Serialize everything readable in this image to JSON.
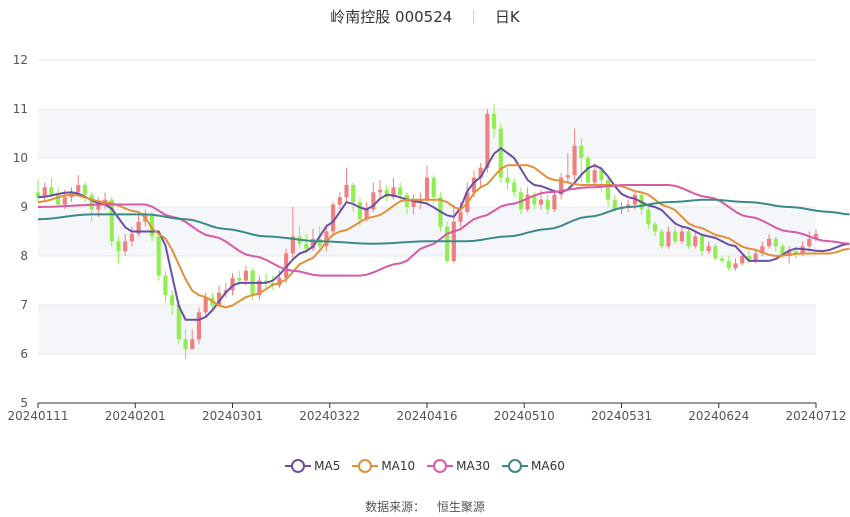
{
  "header": {
    "stock_title": "岭南控股 000524",
    "period": "日K"
  },
  "chart_data": {
    "type": "candlestick",
    "ylim": [
      5,
      12
    ],
    "y_ticks": [
      "5",
      "6",
      "7",
      "8",
      "9",
      "10",
      "11",
      "12"
    ],
    "x_ticks": [
      "20240111",
      "20240201",
      "20240301",
      "20240322",
      "20240416",
      "20240510",
      "20240531",
      "20240624",
      "20240712"
    ],
    "colors": {
      "up": "#f08080",
      "down": "#90ee50",
      "grid": "#e8e8e8",
      "band": "#f5f6fa",
      "axis": "#333333"
    },
    "ohlc": [
      [
        9.3,
        9.2,
        9.55,
        9.1
      ],
      [
        9.2,
        9.4,
        9.5,
        9.1
      ],
      [
        9.4,
        9.25,
        9.6,
        9.2
      ],
      [
        9.25,
        9.05,
        9.4,
        9.0
      ],
      [
        9.05,
        9.2,
        9.35,
        8.95
      ],
      [
        9.2,
        9.3,
        9.4,
        9.1
      ],
      [
        9.3,
        9.45,
        9.65,
        9.25
      ],
      [
        9.45,
        9.25,
        9.5,
        9.1
      ],
      [
        9.25,
        8.95,
        9.3,
        8.7
      ],
      [
        8.95,
        9.05,
        9.2,
        8.8
      ],
      [
        9.05,
        9.15,
        9.3,
        8.95
      ],
      [
        9.15,
        8.3,
        9.2,
        8.2
      ],
      [
        8.3,
        8.1,
        8.4,
        7.85
      ],
      [
        8.1,
        8.3,
        8.45,
        8.0
      ],
      [
        8.3,
        8.45,
        8.6,
        8.2
      ],
      [
        8.45,
        8.7,
        8.85,
        8.4
      ],
      [
        8.7,
        8.85,
        8.95,
        8.6
      ],
      [
        8.85,
        8.4,
        8.9,
        8.3
      ],
      [
        8.4,
        7.6,
        8.45,
        7.5
      ],
      [
        7.6,
        7.2,
        7.7,
        7.05
      ],
      [
        7.2,
        7.0,
        7.3,
        6.8
      ],
      [
        7.0,
        6.3,
        7.1,
        6.2
      ],
      [
        6.3,
        6.1,
        6.5,
        5.9
      ],
      [
        6.1,
        6.3,
        6.5,
        6.1
      ],
      [
        6.3,
        6.85,
        6.95,
        6.2
      ],
      [
        6.85,
        7.15,
        7.25,
        6.75
      ],
      [
        7.15,
        7.0,
        7.25,
        6.9
      ],
      [
        7.0,
        7.25,
        7.4,
        6.95
      ],
      [
        7.25,
        7.3,
        7.45,
        7.15
      ],
      [
        7.3,
        7.55,
        7.65,
        7.2
      ],
      [
        7.55,
        7.5,
        7.7,
        7.4
      ],
      [
        7.5,
        7.7,
        7.8,
        7.4
      ],
      [
        7.7,
        7.2,
        7.75,
        7.1
      ],
      [
        7.2,
        7.5,
        7.6,
        7.1
      ],
      [
        7.5,
        7.45,
        7.65,
        7.35
      ],
      [
        7.45,
        7.4,
        7.6,
        7.3
      ],
      [
        7.4,
        7.55,
        7.7,
        7.35
      ],
      [
        7.55,
        8.05,
        8.15,
        7.45
      ],
      [
        8.05,
        8.4,
        9.0,
        7.95
      ],
      [
        8.4,
        8.25,
        8.6,
        8.15
      ],
      [
        8.25,
        8.15,
        8.45,
        8.05
      ],
      [
        8.15,
        8.35,
        8.55,
        8.1
      ],
      [
        8.35,
        8.2,
        8.6,
        8.1
      ],
      [
        8.2,
        8.5,
        8.65,
        8.1
      ],
      [
        8.5,
        9.05,
        9.1,
        8.4
      ],
      [
        9.05,
        9.2,
        9.3,
        8.95
      ],
      [
        9.2,
        9.45,
        9.8,
        9.1
      ],
      [
        9.45,
        9.1,
        9.5,
        8.9
      ],
      [
        9.1,
        8.75,
        9.2,
        8.6
      ],
      [
        8.75,
        8.95,
        9.1,
        8.7
      ],
      [
        8.95,
        9.3,
        9.5,
        8.9
      ],
      [
        9.3,
        9.35,
        9.55,
        9.2
      ],
      [
        9.35,
        9.2,
        9.45,
        9.1
      ],
      [
        9.2,
        9.4,
        9.6,
        9.15
      ],
      [
        9.4,
        9.25,
        9.5,
        9.1
      ],
      [
        9.25,
        9.0,
        9.3,
        8.85
      ],
      [
        9.0,
        9.1,
        9.25,
        8.85
      ],
      [
        9.1,
        9.15,
        9.3,
        8.95
      ],
      [
        9.15,
        9.6,
        9.85,
        9.1
      ],
      [
        9.6,
        9.2,
        9.65,
        9.05
      ],
      [
        9.2,
        8.6,
        9.3,
        8.5
      ],
      [
        8.6,
        7.9,
        8.7,
        7.85
      ],
      [
        7.9,
        8.7,
        9.05,
        7.85
      ],
      [
        8.7,
        8.9,
        9.1,
        8.6
      ],
      [
        8.9,
        9.3,
        9.5,
        8.85
      ],
      [
        9.3,
        9.6,
        9.75,
        9.2
      ],
      [
        9.6,
        9.8,
        9.9,
        9.4
      ],
      [
        9.8,
        10.9,
        11.0,
        9.7
      ],
      [
        10.9,
        10.6,
        11.1,
        10.4
      ],
      [
        10.6,
        9.6,
        10.7,
        9.5
      ],
      [
        9.6,
        9.5,
        9.8,
        9.35
      ],
      [
        9.5,
        9.3,
        9.6,
        9.2
      ],
      [
        9.3,
        8.95,
        9.4,
        8.85
      ],
      [
        8.95,
        9.25,
        9.4,
        8.9
      ],
      [
        9.25,
        9.05,
        9.3,
        8.95
      ],
      [
        9.05,
        9.15,
        9.35,
        8.95
      ],
      [
        9.15,
        8.95,
        9.25,
        8.85
      ],
      [
        8.95,
        9.25,
        9.35,
        8.9
      ],
      [
        9.25,
        9.6,
        9.7,
        9.15
      ],
      [
        9.6,
        9.65,
        10.1,
        9.5
      ],
      [
        9.65,
        10.25,
        10.6,
        9.55
      ],
      [
        10.25,
        10.0,
        10.4,
        9.5
      ],
      [
        10.0,
        9.5,
        10.05,
        9.4
      ],
      [
        9.5,
        9.75,
        9.9,
        9.4
      ],
      [
        9.75,
        9.55,
        9.85,
        9.3
      ],
      [
        9.55,
        9.15,
        9.6,
        9.0
      ],
      [
        9.15,
        8.95,
        9.25,
        8.9
      ],
      [
        8.95,
        9.0,
        9.1,
        8.85
      ],
      [
        9.0,
        9.05,
        9.15,
        8.9
      ],
      [
        9.05,
        9.25,
        9.35,
        8.95
      ],
      [
        9.25,
        8.95,
        9.3,
        8.85
      ],
      [
        8.95,
        8.65,
        9.0,
        8.55
      ],
      [
        8.65,
        8.5,
        8.7,
        8.4
      ],
      [
        8.5,
        8.2,
        8.55,
        8.15
      ],
      [
        8.2,
        8.5,
        8.6,
        8.15
      ],
      [
        8.5,
        8.3,
        8.6,
        8.25
      ],
      [
        8.3,
        8.5,
        8.6,
        8.25
      ],
      [
        8.5,
        8.2,
        8.55,
        8.15
      ],
      [
        8.2,
        8.4,
        8.5,
        8.15
      ],
      [
        8.4,
        8.1,
        8.45,
        8.0
      ],
      [
        8.1,
        8.2,
        8.3,
        8.05
      ],
      [
        8.2,
        7.95,
        8.25,
        7.9
      ],
      [
        7.95,
        7.9,
        8.0,
        7.85
      ],
      [
        7.9,
        7.75,
        8.0,
        7.7
      ],
      [
        7.75,
        7.85,
        7.95,
        7.7
      ],
      [
        7.85,
        8.0,
        8.05,
        7.8
      ],
      [
        8.0,
        7.9,
        8.1,
        7.85
      ],
      [
        7.9,
        8.05,
        8.15,
        7.85
      ],
      [
        8.05,
        8.2,
        8.3,
        8.0
      ],
      [
        8.2,
        8.35,
        8.45,
        8.15
      ],
      [
        8.35,
        8.2,
        8.4,
        8.1
      ],
      [
        8.2,
        8.0,
        8.25,
        7.95
      ],
      [
        8.0,
        8.1,
        8.2,
        7.85
      ],
      [
        8.1,
        8.05,
        8.2,
        7.95
      ],
      [
        8.05,
        8.2,
        8.3,
        8.0
      ],
      [
        8.2,
        8.35,
        8.5,
        8.1
      ],
      [
        8.35,
        8.45,
        8.55,
        8.3
      ]
    ],
    "series": [
      {
        "name": "MA5",
        "color": "#6a4fa6",
        "anchors": [
          [
            0,
            9.2
          ],
          [
            5,
            9.3
          ],
          [
            10,
            9.05
          ],
          [
            14,
            8.5
          ],
          [
            18,
            8.5
          ],
          [
            22,
            6.7
          ],
          [
            24,
            6.7
          ],
          [
            30,
            7.45
          ],
          [
            34,
            7.45
          ],
          [
            40,
            8.1
          ],
          [
            44,
            8.7
          ],
          [
            46,
            9.1
          ],
          [
            49,
            8.95
          ],
          [
            52,
            9.25
          ],
          [
            57,
            9.1
          ],
          [
            62,
            8.8
          ],
          [
            65,
            9.5
          ],
          [
            69,
            10.2
          ],
          [
            70,
            10.1
          ],
          [
            74,
            9.45
          ],
          [
            78,
            9.3
          ],
          [
            83,
            9.85
          ],
          [
            88,
            9.2
          ],
          [
            92,
            9.0
          ],
          [
            96,
            8.6
          ],
          [
            100,
            8.4
          ],
          [
            104,
            8.2
          ],
          [
            106,
            7.9
          ],
          [
            109,
            7.9
          ],
          [
            113,
            8.15
          ],
          [
            117,
            8.1
          ],
          [
            121,
            8.25
          ]
        ]
      },
      {
        "name": "MA10",
        "color": "#e0913a",
        "anchors": [
          [
            0,
            9.1
          ],
          [
            5,
            9.25
          ],
          [
            10,
            9.1
          ],
          [
            15,
            8.9
          ],
          [
            18,
            8.45
          ],
          [
            24,
            7.2
          ],
          [
            28,
            6.95
          ],
          [
            32,
            7.2
          ],
          [
            36,
            7.45
          ],
          [
            40,
            7.9
          ],
          [
            45,
            8.5
          ],
          [
            50,
            8.8
          ],
          [
            55,
            9.15
          ],
          [
            60,
            9.15
          ],
          [
            63,
            8.95
          ],
          [
            66,
            9.4
          ],
          [
            70,
            9.85
          ],
          [
            73,
            9.85
          ],
          [
            77,
            9.55
          ],
          [
            81,
            9.45
          ],
          [
            86,
            9.45
          ],
          [
            90,
            9.3
          ],
          [
            94,
            9.0
          ],
          [
            98,
            8.6
          ],
          [
            102,
            8.4
          ],
          [
            106,
            8.15
          ],
          [
            110,
            8.0
          ],
          [
            114,
            8.05
          ],
          [
            118,
            8.05
          ],
          [
            121,
            8.15
          ]
        ]
      },
      {
        "name": "MA30",
        "color": "#d65aa6",
        "anchors": [
          [
            0,
            9.0
          ],
          [
            10,
            9.05
          ],
          [
            16,
            9.05
          ],
          [
            20,
            8.8
          ],
          [
            26,
            8.4
          ],
          [
            32,
            8.0
          ],
          [
            38,
            7.7
          ],
          [
            42,
            7.6
          ],
          [
            48,
            7.6
          ],
          [
            54,
            7.85
          ],
          [
            58,
            8.2
          ],
          [
            62,
            8.5
          ],
          [
            66,
            8.8
          ],
          [
            70,
            9.05
          ],
          [
            76,
            9.3
          ],
          [
            82,
            9.4
          ],
          [
            88,
            9.45
          ],
          [
            94,
            9.45
          ],
          [
            100,
            9.2
          ],
          [
            106,
            8.8
          ],
          [
            112,
            8.5
          ],
          [
            118,
            8.3
          ],
          [
            121,
            8.25
          ]
        ]
      },
      {
        "name": "MA60",
        "color": "#3a8a8a",
        "anchors": [
          [
            0,
            8.75
          ],
          [
            8,
            8.85
          ],
          [
            16,
            8.85
          ],
          [
            22,
            8.75
          ],
          [
            28,
            8.55
          ],
          [
            34,
            8.4
          ],
          [
            42,
            8.3
          ],
          [
            50,
            8.25
          ],
          [
            58,
            8.3
          ],
          [
            64,
            8.3
          ],
          [
            70,
            8.4
          ],
          [
            76,
            8.55
          ],
          [
            82,
            8.8
          ],
          [
            88,
            9.0
          ],
          [
            94,
            9.1
          ],
          [
            100,
            9.15
          ],
          [
            106,
            9.1
          ],
          [
            112,
            9.0
          ],
          [
            118,
            8.9
          ],
          [
            121,
            8.85
          ]
        ]
      }
    ]
  },
  "legend": {
    "items": [
      {
        "name": "MA5",
        "color": "#6a4fa6"
      },
      {
        "name": "MA10",
        "color": "#e0913a"
      },
      {
        "name": "MA30",
        "color": "#d65aa6"
      },
      {
        "name": "MA60",
        "color": "#3a8a8a"
      }
    ]
  },
  "footer": {
    "source_label": "数据来源：",
    "source_name": "恒生聚源"
  }
}
